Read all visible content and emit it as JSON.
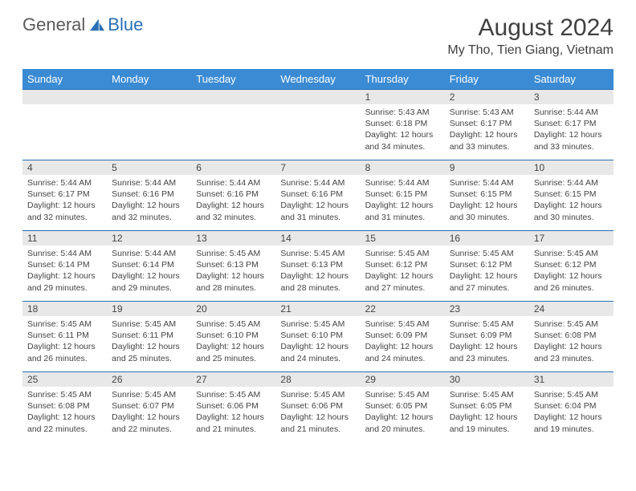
{
  "logo": {
    "general": "General",
    "blue": "Blue"
  },
  "title": "August 2024",
  "location": "My Tho, Tien Giang, Vietnam",
  "colors": {
    "header_bg": "#3b8bd4",
    "header_text": "#ffffff",
    "daynum_bg": "#e8e8e8",
    "border": "#2a6fb5",
    "text": "#444444",
    "logo_gray": "#5a5a5a",
    "logo_blue": "#2a6fb5"
  },
  "fonts": {
    "title_size": 30,
    "location_size": 16,
    "th_size": 13,
    "day_size": 12,
    "body_size": 10.5
  },
  "weekdays": [
    "Sunday",
    "Monday",
    "Tuesday",
    "Wednesday",
    "Thursday",
    "Friday",
    "Saturday"
  ],
  "weeks": [
    [
      null,
      null,
      null,
      null,
      {
        "d": "1",
        "sr": "5:43 AM",
        "ss": "6:18 PM",
        "dl": "12 hours and 34 minutes."
      },
      {
        "d": "2",
        "sr": "5:43 AM",
        "ss": "6:17 PM",
        "dl": "12 hours and 33 minutes."
      },
      {
        "d": "3",
        "sr": "5:44 AM",
        "ss": "6:17 PM",
        "dl": "12 hours and 33 minutes."
      }
    ],
    [
      {
        "d": "4",
        "sr": "5:44 AM",
        "ss": "6:17 PM",
        "dl": "12 hours and 32 minutes."
      },
      {
        "d": "5",
        "sr": "5:44 AM",
        "ss": "6:16 PM",
        "dl": "12 hours and 32 minutes."
      },
      {
        "d": "6",
        "sr": "5:44 AM",
        "ss": "6:16 PM",
        "dl": "12 hours and 32 minutes."
      },
      {
        "d": "7",
        "sr": "5:44 AM",
        "ss": "6:16 PM",
        "dl": "12 hours and 31 minutes."
      },
      {
        "d": "8",
        "sr": "5:44 AM",
        "ss": "6:15 PM",
        "dl": "12 hours and 31 minutes."
      },
      {
        "d": "9",
        "sr": "5:44 AM",
        "ss": "6:15 PM",
        "dl": "12 hours and 30 minutes."
      },
      {
        "d": "10",
        "sr": "5:44 AM",
        "ss": "6:15 PM",
        "dl": "12 hours and 30 minutes."
      }
    ],
    [
      {
        "d": "11",
        "sr": "5:44 AM",
        "ss": "6:14 PM",
        "dl": "12 hours and 29 minutes."
      },
      {
        "d": "12",
        "sr": "5:44 AM",
        "ss": "6:14 PM",
        "dl": "12 hours and 29 minutes."
      },
      {
        "d": "13",
        "sr": "5:45 AM",
        "ss": "6:13 PM",
        "dl": "12 hours and 28 minutes."
      },
      {
        "d": "14",
        "sr": "5:45 AM",
        "ss": "6:13 PM",
        "dl": "12 hours and 28 minutes."
      },
      {
        "d": "15",
        "sr": "5:45 AM",
        "ss": "6:12 PM",
        "dl": "12 hours and 27 minutes."
      },
      {
        "d": "16",
        "sr": "5:45 AM",
        "ss": "6:12 PM",
        "dl": "12 hours and 27 minutes."
      },
      {
        "d": "17",
        "sr": "5:45 AM",
        "ss": "6:12 PM",
        "dl": "12 hours and 26 minutes."
      }
    ],
    [
      {
        "d": "18",
        "sr": "5:45 AM",
        "ss": "6:11 PM",
        "dl": "12 hours and 26 minutes."
      },
      {
        "d": "19",
        "sr": "5:45 AM",
        "ss": "6:11 PM",
        "dl": "12 hours and 25 minutes."
      },
      {
        "d": "20",
        "sr": "5:45 AM",
        "ss": "6:10 PM",
        "dl": "12 hours and 25 minutes."
      },
      {
        "d": "21",
        "sr": "5:45 AM",
        "ss": "6:10 PM",
        "dl": "12 hours and 24 minutes."
      },
      {
        "d": "22",
        "sr": "5:45 AM",
        "ss": "6:09 PM",
        "dl": "12 hours and 24 minutes."
      },
      {
        "d": "23",
        "sr": "5:45 AM",
        "ss": "6:09 PM",
        "dl": "12 hours and 23 minutes."
      },
      {
        "d": "24",
        "sr": "5:45 AM",
        "ss": "6:08 PM",
        "dl": "12 hours and 23 minutes."
      }
    ],
    [
      {
        "d": "25",
        "sr": "5:45 AM",
        "ss": "6:08 PM",
        "dl": "12 hours and 22 minutes."
      },
      {
        "d": "26",
        "sr": "5:45 AM",
        "ss": "6:07 PM",
        "dl": "12 hours and 22 minutes."
      },
      {
        "d": "27",
        "sr": "5:45 AM",
        "ss": "6:06 PM",
        "dl": "12 hours and 21 minutes."
      },
      {
        "d": "28",
        "sr": "5:45 AM",
        "ss": "6:06 PM",
        "dl": "12 hours and 21 minutes."
      },
      {
        "d": "29",
        "sr": "5:45 AM",
        "ss": "6:05 PM",
        "dl": "12 hours and 20 minutes."
      },
      {
        "d": "30",
        "sr": "5:45 AM",
        "ss": "6:05 PM",
        "dl": "12 hours and 19 minutes."
      },
      {
        "d": "31",
        "sr": "5:45 AM",
        "ss": "6:04 PM",
        "dl": "12 hours and 19 minutes."
      }
    ]
  ],
  "labels": {
    "sunrise": "Sunrise: ",
    "sunset": "Sunset: ",
    "daylight": "Daylight: "
  }
}
